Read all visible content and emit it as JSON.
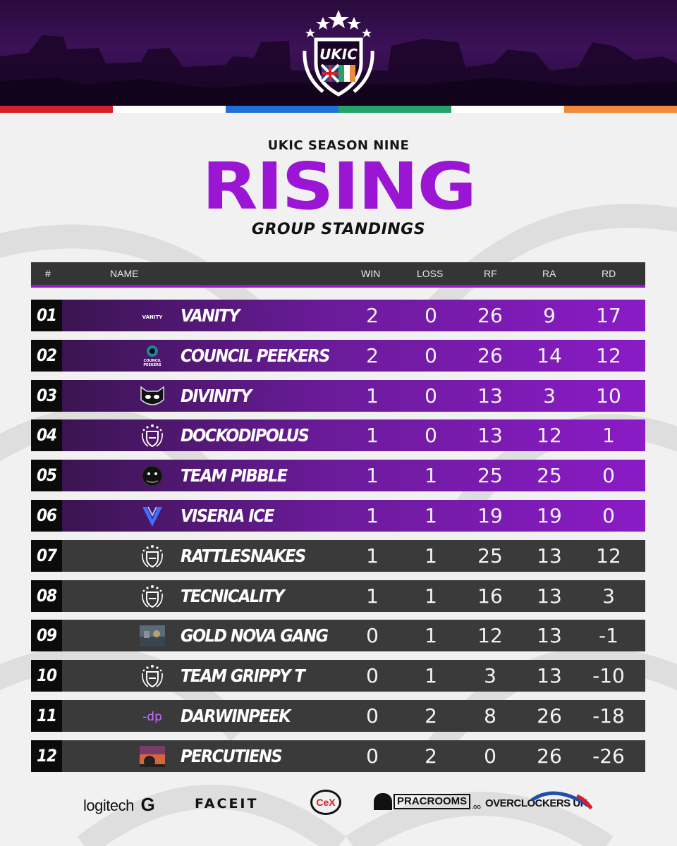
{
  "header": {
    "logo_text": "UKIC",
    "stripe_colors": [
      "#d81e2a",
      "#ffffff",
      "#1f6fd6",
      "#23a36a",
      "#ffffff",
      "#f08a3a"
    ]
  },
  "title": {
    "season": "UKIC SEASON NINE",
    "main": "RISING",
    "sub": "GROUP STANDINGS"
  },
  "table": {
    "columns": {
      "pos": "#",
      "name": "NAME",
      "win": "WIN",
      "loss": "LOSS",
      "rf": "RF",
      "ra": "RA",
      "rd": "RD"
    },
    "rows": [
      {
        "pos": "01",
        "name": "VANITY",
        "logo": "vanity-logo",
        "win": "2",
        "loss": "0",
        "rf": "26",
        "ra": "9",
        "rd": "17",
        "tier": "top"
      },
      {
        "pos": "02",
        "name": "COUNCIL PEEKERS",
        "logo": "council-peekers-logo",
        "win": "2",
        "loss": "0",
        "rf": "26",
        "ra": "14",
        "rd": "12",
        "tier": "top"
      },
      {
        "pos": "03",
        "name": "DIVINITY",
        "logo": "cat-mask-logo",
        "win": "1",
        "loss": "0",
        "rf": "13",
        "ra": "3",
        "rd": "10",
        "tier": "top"
      },
      {
        "pos": "04",
        "name": "DOCKODIPOLUS",
        "logo": "ukic-shield-logo",
        "win": "1",
        "loss": "0",
        "rf": "13",
        "ra": "12",
        "rd": "1",
        "tier": "top"
      },
      {
        "pos": "05",
        "name": "TEAM PIBBLE",
        "logo": "pibble-logo",
        "win": "1",
        "loss": "1",
        "rf": "25",
        "ra": "25",
        "rd": "0",
        "tier": "top"
      },
      {
        "pos": "06",
        "name": "VISERIA ICE",
        "logo": "v-logo",
        "win": "1",
        "loss": "1",
        "rf": "19",
        "ra": "19",
        "rd": "0",
        "tier": "top"
      },
      {
        "pos": "07",
        "name": "RATTLESNAKES",
        "logo": "ukic-shield-logo",
        "win": "1",
        "loss": "1",
        "rf": "25",
        "ra": "13",
        "rd": "12",
        "tier": "low"
      },
      {
        "pos": "08",
        "name": "TECNICALITY",
        "logo": "ukic-shield-logo",
        "win": "1",
        "loss": "1",
        "rf": "16",
        "ra": "13",
        "rd": "3",
        "tier": "low"
      },
      {
        "pos": "09",
        "name": "GOLD NOVA GANG",
        "logo": "photo-logo",
        "win": "0",
        "loss": "1",
        "rf": "12",
        "ra": "13",
        "rd": "-1",
        "tier": "low"
      },
      {
        "pos": "10",
        "name": "TEAM GRIPPY T",
        "logo": "ukic-shield-logo",
        "win": "0",
        "loss": "1",
        "rf": "3",
        "ra": "13",
        "rd": "-10",
        "tier": "low"
      },
      {
        "pos": "11",
        "name": "DARWINPEEK",
        "logo": "dp-logo",
        "win": "0",
        "loss": "2",
        "rf": "8",
        "ra": "26",
        "rd": "-18",
        "tier": "low"
      },
      {
        "pos": "12",
        "name": "PERCUTIENS",
        "logo": "sunset-logo",
        "win": "0",
        "loss": "2",
        "rf": "0",
        "ra": "26",
        "rd": "-26",
        "tier": "low"
      }
    ]
  },
  "team_logo_text": {
    "vanity": "VANITY",
    "council": "COUNCIL PEEKERS",
    "dp": "-dp"
  },
  "sponsors": {
    "logitech": "logitech",
    "logitech_mark": "G",
    "faceit": "FACEIT",
    "cex": "CeX",
    "pracrooms": "PRACROOMS",
    "pracrooms_suffix": ".GG",
    "overclockers": "OVERCLOCKERS UK"
  },
  "colors": {
    "accent": "#9a16d4",
    "header_bg": "#353535",
    "low_row": "#3a3a3a",
    "pos_cell": "#0b0b0b"
  }
}
